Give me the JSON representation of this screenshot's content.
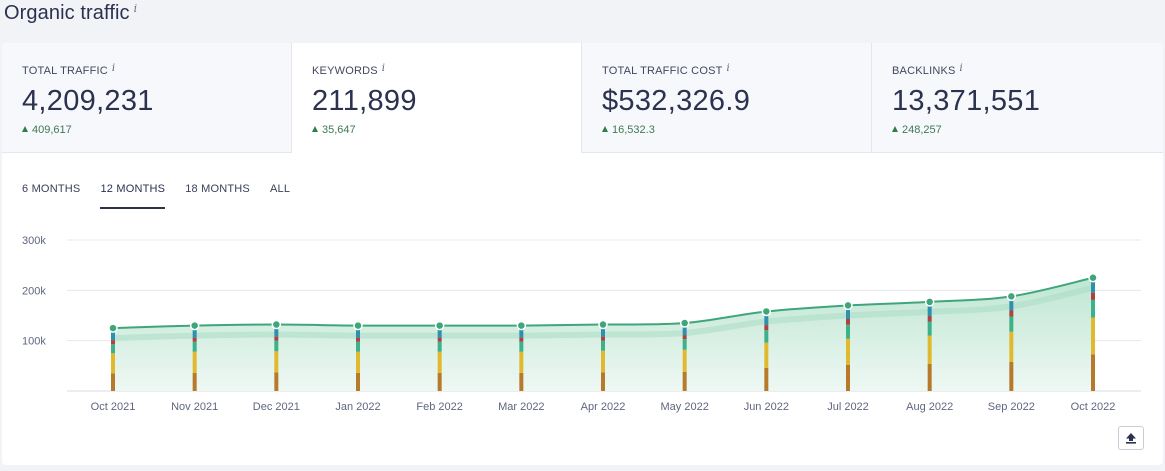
{
  "page_title": "Organic traffic",
  "info_glyph": "i",
  "metrics": [
    {
      "label": "TOTAL TRAFFIC",
      "value": "4,209,231",
      "delta": "409,617",
      "active": false
    },
    {
      "label": "KEYWORDS",
      "value": "211,899",
      "delta": "35,647",
      "active": true
    },
    {
      "label": "TOTAL TRAFFIC COST",
      "value": "$532,326.9",
      "delta": "16,532.3",
      "active": false
    },
    {
      "label": "BACKLINKS",
      "value": "13,371,551",
      "delta": "248,257",
      "active": false
    }
  ],
  "tabs": [
    {
      "label": "6 MONTHS",
      "active": false
    },
    {
      "label": "12 MONTHS",
      "active": true
    },
    {
      "label": "18 MONTHS",
      "active": false
    },
    {
      "label": "ALL",
      "active": false
    }
  ],
  "export_icon": "upload-icon",
  "colors": {
    "line": "#3fa67a",
    "area": "#d8f0e4",
    "delta": "#3d7a52",
    "stack": [
      "#b7792a",
      "#e0b92c",
      "#3eb08a",
      "#b2413b",
      "#2f8fb0"
    ]
  },
  "chart_data": {
    "type": "area",
    "categories": [
      "Oct 2021",
      "Nov 2021",
      "Dec 2021",
      "Jan 2022",
      "Feb 2022",
      "Mar 2022",
      "Apr 2022",
      "May 2022",
      "Jun 2022",
      "Jul 2022",
      "Aug 2022",
      "Sep 2022",
      "Oct 2022"
    ],
    "series": [
      {
        "values": [
          125000,
          130000,
          132000,
          130000,
          130000,
          130000,
          132000,
          135000,
          158000,
          170000,
          177000,
          188000,
          225000
        ]
      }
    ],
    "stack_breakdown": [
      [
        35000,
        40000,
        18000,
        8000,
        24000
      ],
      [
        36000,
        42000,
        20000,
        8000,
        24000
      ],
      [
        37000,
        42000,
        21000,
        8000,
        24000
      ],
      [
        36000,
        42000,
        20000,
        8000,
        24000
      ],
      [
        36000,
        42000,
        20000,
        8000,
        24000
      ],
      [
        36000,
        42000,
        20000,
        8000,
        24000
      ],
      [
        37000,
        43000,
        20000,
        8000,
        24000
      ],
      [
        38000,
        44000,
        21000,
        8000,
        24000
      ],
      [
        46000,
        50000,
        25000,
        10000,
        27000
      ],
      [
        52000,
        52000,
        28000,
        11000,
        27000
      ],
      [
        54000,
        56000,
        28000,
        11000,
        28000
      ],
      [
        58000,
        60000,
        30000,
        12000,
        28000
      ],
      [
        73000,
        73000,
        35000,
        14000,
        30000
      ]
    ],
    "yticks": [
      100000,
      200000,
      300000
    ],
    "ytick_labels": [
      "100k",
      "200k",
      "300k"
    ],
    "ylim": [
      0,
      300000
    ],
    "grid": true,
    "legend": "none"
  }
}
